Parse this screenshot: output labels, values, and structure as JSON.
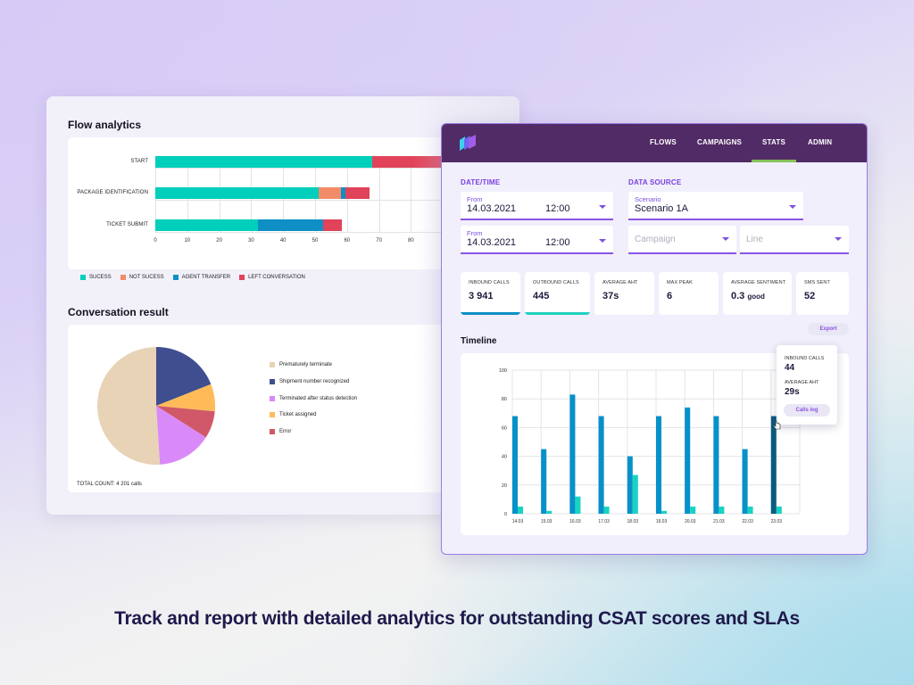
{
  "caption": "Track and report with detailed analytics for outstanding CSAT scores and SLAs",
  "flow_analytics": {
    "title": "Flow analytics",
    "legend": [
      {
        "label": "SUCESS",
        "color": "#00cfbb"
      },
      {
        "label": "NOT SUCESS",
        "color": "#f28b68"
      },
      {
        "label": "AGENT TRANSFER",
        "color": "#0e8fc6"
      },
      {
        "label": "LEFT CONVERSATION",
        "color": "#e0435a"
      }
    ]
  },
  "conversation_result": {
    "title": "Conversation result",
    "total_count": "TOTAL COUNT: 4 201 calls"
  },
  "app": {
    "nav": [
      {
        "label": "FLOWS",
        "active": false
      },
      {
        "label": "CAMPAIGNS",
        "active": false
      },
      {
        "label": "STATS",
        "active": true
      },
      {
        "label": "ADMIN",
        "active": false
      }
    ],
    "date_time": {
      "section_label": "DATE/TIME",
      "from1": {
        "label": "From",
        "date": "14.03.2021",
        "time": "12:00"
      },
      "from2": {
        "label": "From",
        "date": "14.03.2021",
        "time": "12:00"
      }
    },
    "data_source": {
      "section_label": "DATA SOURCE",
      "scenario": {
        "label": "Scenario",
        "value": "Scenario 1A"
      },
      "campaign": {
        "placeholder": "Campaign"
      },
      "line": {
        "placeholder": "Line"
      }
    },
    "stats": [
      {
        "label": "INBOUND CALLS",
        "value": "3 941",
        "suffix": "",
        "accent": "#0e8fc6"
      },
      {
        "label": "OUTBOUND CALLS",
        "value": "445",
        "suffix": "",
        "accent": "#1fd3c0"
      },
      {
        "label": "AVERAGE AHT",
        "value": "37s",
        "suffix": "",
        "accent": ""
      },
      {
        "label": "MAX PEAK",
        "value": "6",
        "suffix": "",
        "accent": ""
      },
      {
        "label": "AVERAGE SENTIMENT",
        "value": "0.3",
        "suffix": "good",
        "accent": ""
      },
      {
        "label": "SMS SENT",
        "value": "52",
        "suffix": "",
        "accent": ""
      }
    ],
    "export_label": "Export",
    "timeline_title": "Timeline",
    "tooltip": {
      "inbound_label": "INBOUND CALLS",
      "inbound_value": "44",
      "aht_label": "AVERAGE AHT",
      "aht_value": "29s",
      "button_label": "Calls log"
    }
  },
  "chart_data": [
    {
      "type": "bar",
      "orientation": "horizontal",
      "stacked": true,
      "title": "Flow analytics",
      "categories": [
        "START",
        "PACKAGE IDENTIFICATION",
        "TICKET SUBMIT"
      ],
      "series": [
        {
          "name": "SUCESS",
          "color": "#00cfbb",
          "values": [
            68,
            51,
            32
          ]
        },
        {
          "name": "NOT SUCESS",
          "color": "#f28b68",
          "values": [
            0,
            7,
            0
          ]
        },
        {
          "name": "AGENT TRANSFER",
          "color": "#0e8fc6",
          "values": [
            0,
            1.5,
            20.5
          ]
        },
        {
          "name": "LEFT CONVERSATION",
          "color": "#e0435a",
          "values": [
            26,
            7.5,
            6
          ]
        }
      ],
      "xticks": [
        0,
        10,
        20,
        30,
        40,
        50,
        60,
        70,
        80
      ],
      "xlim": [
        0,
        90
      ],
      "grid": true,
      "legend": "bottom-left"
    },
    {
      "type": "pie",
      "title": "Conversation result",
      "slices": [
        {
          "label": "Shipment number recognized",
          "value": 19,
          "color": "#3f4e8e"
        },
        {
          "label": "Ticket assigned",
          "value": 7.5,
          "color": "#ffbb58"
        },
        {
          "label": "Error",
          "value": 7.5,
          "color": "#d05868"
        },
        {
          "label": "Terminated after status detection",
          "value": 15,
          "color": "#da8af8"
        },
        {
          "label": "Prematurely terminate",
          "value": 51,
          "color": "#e8d3b6"
        }
      ],
      "legend_order": [
        "Prematurely terminate",
        "Shipment number recognized",
        "Terminated after status detection",
        "Ticket assigned",
        "Error"
      ],
      "legend": "right"
    },
    {
      "type": "bar",
      "title": "Timeline",
      "categories": [
        "14.03",
        "15.03",
        "16.03",
        "17.03",
        "18.03",
        "19.03",
        "20.03",
        "21.03",
        "22.03",
        "23.03"
      ],
      "series": [
        {
          "name": "Inbound calls",
          "color": "#0591c9",
          "values": [
            68,
            45,
            83,
            68,
            40,
            68,
            74,
            68,
            45,
            68
          ]
        },
        {
          "name": "Outbound calls",
          "color": "#19d3c2",
          "values": [
            5,
            2,
            12,
            5,
            27,
            2,
            5,
            5,
            5,
            5
          ]
        }
      ],
      "highlighted_category": "23.03",
      "highlight_color": "#0a5b80",
      "yticks": [
        0,
        20,
        40,
        60,
        80,
        100
      ],
      "ylim": [
        0,
        100
      ],
      "grid": true
    }
  ]
}
